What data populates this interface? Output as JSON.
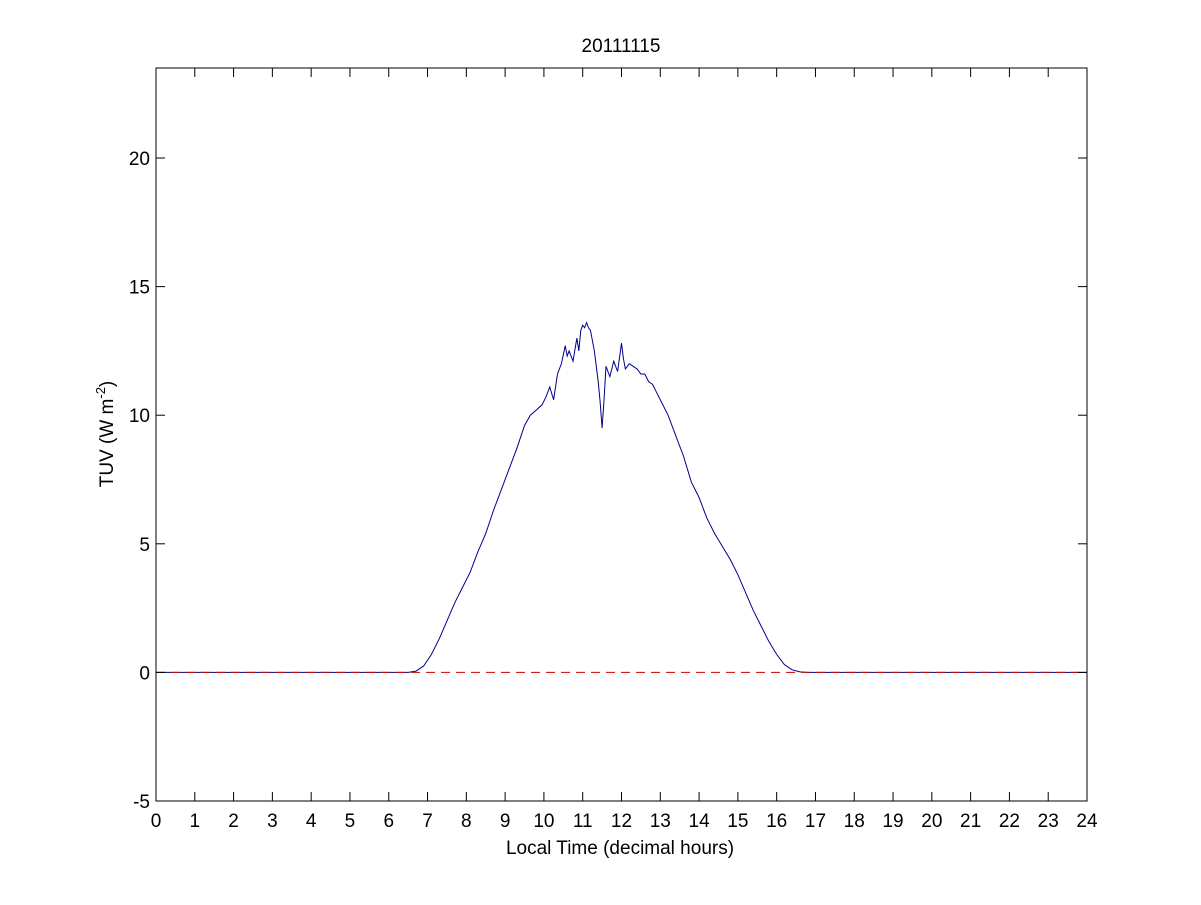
{
  "chart_data": {
    "type": "line",
    "title": "20111115",
    "xlabel": "Local Time (decimal hours)",
    "ylabel_main": "TUV (W m",
    "ylabel_sup": "-2",
    "ylabel_close": ")",
    "xlim": [
      0,
      24
    ],
    "ylim": [
      -5,
      23.5
    ],
    "xticks": [
      0,
      1,
      2,
      3,
      4,
      5,
      6,
      7,
      8,
      9,
      10,
      11,
      12,
      13,
      14,
      15,
      16,
      17,
      18,
      19,
      20,
      21,
      22,
      23,
      24
    ],
    "yticks": [
      -5,
      0,
      5,
      10,
      15,
      20
    ],
    "grid": false,
    "series": [
      {
        "line_style": "solid",
        "color": "#00008b",
        "x": [
          0,
          6.5,
          6.7,
          6.9,
          7.1,
          7.3,
          7.5,
          7.7,
          7.9,
          8.1,
          8.3,
          8.5,
          8.7,
          8.9,
          9.1,
          9.3,
          9.5,
          9.65,
          9.8,
          9.95,
          10.05,
          10.15,
          10.25,
          10.35,
          10.45,
          10.55,
          10.6,
          10.65,
          10.75,
          10.85,
          10.9,
          10.95,
          11.0,
          11.05,
          11.1,
          11.15,
          11.2,
          11.3,
          11.4,
          11.45,
          11.5,
          11.55,
          11.6,
          11.7,
          11.8,
          11.9,
          12.0,
          12.05,
          12.1,
          12.2,
          12.3,
          12.4,
          12.5,
          12.6,
          12.7,
          12.8,
          12.9,
          13.0,
          13.2,
          13.4,
          13.6,
          13.8,
          14.0,
          14.2,
          14.4,
          14.6,
          14.8,
          15.0,
          15.2,
          15.4,
          15.6,
          15.8,
          16.0,
          16.2,
          16.4,
          16.6,
          16.8,
          17.0,
          17.2,
          17.5,
          24
        ],
        "y": [
          0,
          0,
          0.05,
          0.25,
          0.7,
          1.3,
          2.0,
          2.7,
          3.3,
          3.9,
          4.7,
          5.4,
          6.3,
          7.1,
          7.9,
          8.7,
          9.6,
          10.0,
          10.2,
          10.4,
          10.7,
          11.1,
          10.6,
          11.6,
          12.0,
          12.7,
          12.3,
          12.5,
          12.1,
          13.0,
          12.5,
          13.3,
          13.5,
          13.4,
          13.6,
          13.4,
          13.3,
          12.5,
          11.3,
          10.5,
          9.5,
          10.6,
          11.9,
          11.5,
          12.1,
          11.7,
          12.8,
          12.2,
          11.8,
          12.0,
          11.9,
          11.8,
          11.6,
          11.6,
          11.3,
          11.2,
          10.9,
          10.6,
          10.0,
          9.2,
          8.4,
          7.4,
          6.8,
          6.0,
          5.4,
          4.9,
          4.4,
          3.8,
          3.1,
          2.4,
          1.8,
          1.2,
          0.7,
          0.3,
          0.1,
          0.02,
          0,
          0,
          0,
          0,
          0
        ]
      },
      {
        "line_style": "dashed",
        "color": "#cc0000",
        "x": [
          0,
          24
        ],
        "y": [
          0,
          0
        ]
      }
    ]
  }
}
